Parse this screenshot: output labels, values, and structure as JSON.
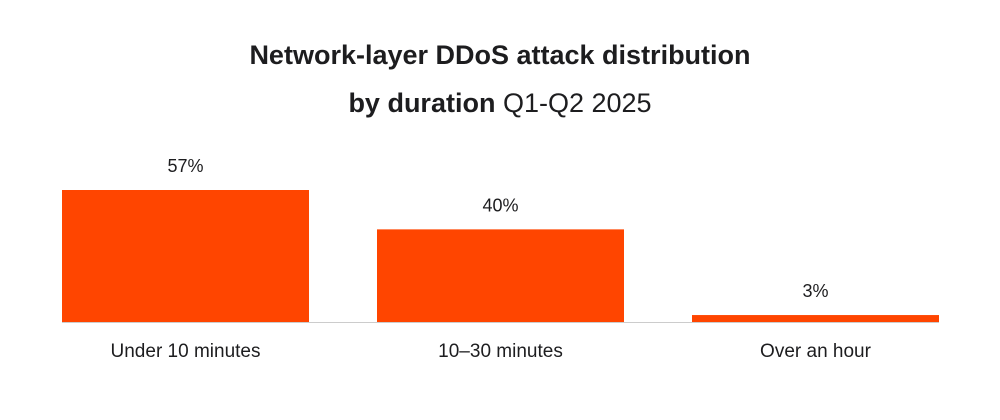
{
  "chart_data": {
    "type": "bar",
    "title_bold": "Network-layer DDoS attack distribution",
    "subtitle_bold": "by duration",
    "subtitle_regular": "Q1-Q2 2025",
    "categories": [
      "Under 10 minutes",
      "10–30 minutes",
      "Over an hour"
    ],
    "values": [
      57,
      40,
      3
    ],
    "value_labels": [
      "57%",
      "40%",
      "3%"
    ],
    "xlabel": "",
    "ylabel": "",
    "ylim": [
      0,
      57
    ],
    "grid": false,
    "bar_color": "#ff4500",
    "baseline_color": "#cccccc"
  }
}
